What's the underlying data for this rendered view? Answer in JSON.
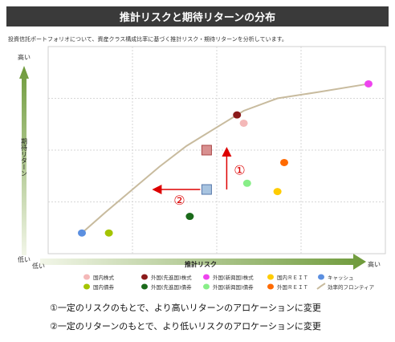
{
  "header": {
    "title": "推計リスクと期待リターンの分布",
    "subtitle": "投資信託ポートフォリオについて、資産クラス構成比率に基づく推計リスク・期待リターンを分析しています。"
  },
  "chart_data": {
    "type": "scatter",
    "title": "推計リスクと期待リターンの分布",
    "xlabel": "推計リスク",
    "ylabel": "期待リターン",
    "x_low_label": "低い",
    "x_high_label": "高い",
    "y_low_label": "低い",
    "y_high_label": "高い",
    "xlim": [
      0,
      100
    ],
    "ylim": [
      0,
      100
    ],
    "grid": true,
    "legend_position": "bottom",
    "series": [
      {
        "name": "国内株式",
        "color": "#f4b8b8",
        "points": [
          [
            58,
            63
          ]
        ]
      },
      {
        "name": "外国(先進国)株式",
        "color": "#8b1a1a",
        "points": [
          [
            56,
            67
          ]
        ]
      },
      {
        "name": "外国(新興国)株式",
        "color": "#ee44ee",
        "points": [
          [
            95,
            82
          ]
        ]
      },
      {
        "name": "国内ＲＥＩＴ",
        "color": "#ffcc00",
        "points": [
          [
            68,
            30
          ]
        ]
      },
      {
        "name": "キャッシュ",
        "color": "#5b8fe0",
        "points": [
          [
            10,
            10
          ]
        ]
      },
      {
        "name": "国内債券",
        "color": "#a4c400",
        "points": [
          [
            18,
            10
          ]
        ]
      },
      {
        "name": "外国(先進国)債券",
        "color": "#1a6a1a",
        "points": [
          [
            42,
            18
          ]
        ]
      },
      {
        "name": "外国(新興国)債券",
        "color": "#88ee88",
        "points": [
          [
            59,
            34
          ]
        ]
      },
      {
        "name": "外国ＲＥＩＴ",
        "color": "#ff6a00",
        "points": [
          [
            70,
            44
          ]
        ]
      }
    ],
    "frontier": {
      "name": "効率的フロンティア",
      "color": "#c8bb9e",
      "x": [
        10,
        17,
        25,
        33,
        41,
        49,
        58,
        68,
        80,
        95
      ],
      "y": [
        10,
        20,
        31,
        42,
        52,
        60,
        69,
        75,
        78,
        82
      ]
    },
    "portfolio_points": {
      "current": {
        "x": 47,
        "y": 31,
        "color": "#a8c4e0",
        "border": "#5577aa"
      },
      "target": {
        "x": 47,
        "y": 50,
        "color": "#d89090",
        "border": "#aa4444"
      }
    },
    "arrows": [
      {
        "label": "①",
        "color": "#dd0000"
      },
      {
        "label": "②",
        "color": "#dd0000"
      }
    ]
  },
  "notes": {
    "line1": "①一定のリスクのもとで、より高いリターンのアロケーションに変更",
    "line2": "②一定のリターンのもとで、より低いリスクのアロケーションに変更"
  }
}
